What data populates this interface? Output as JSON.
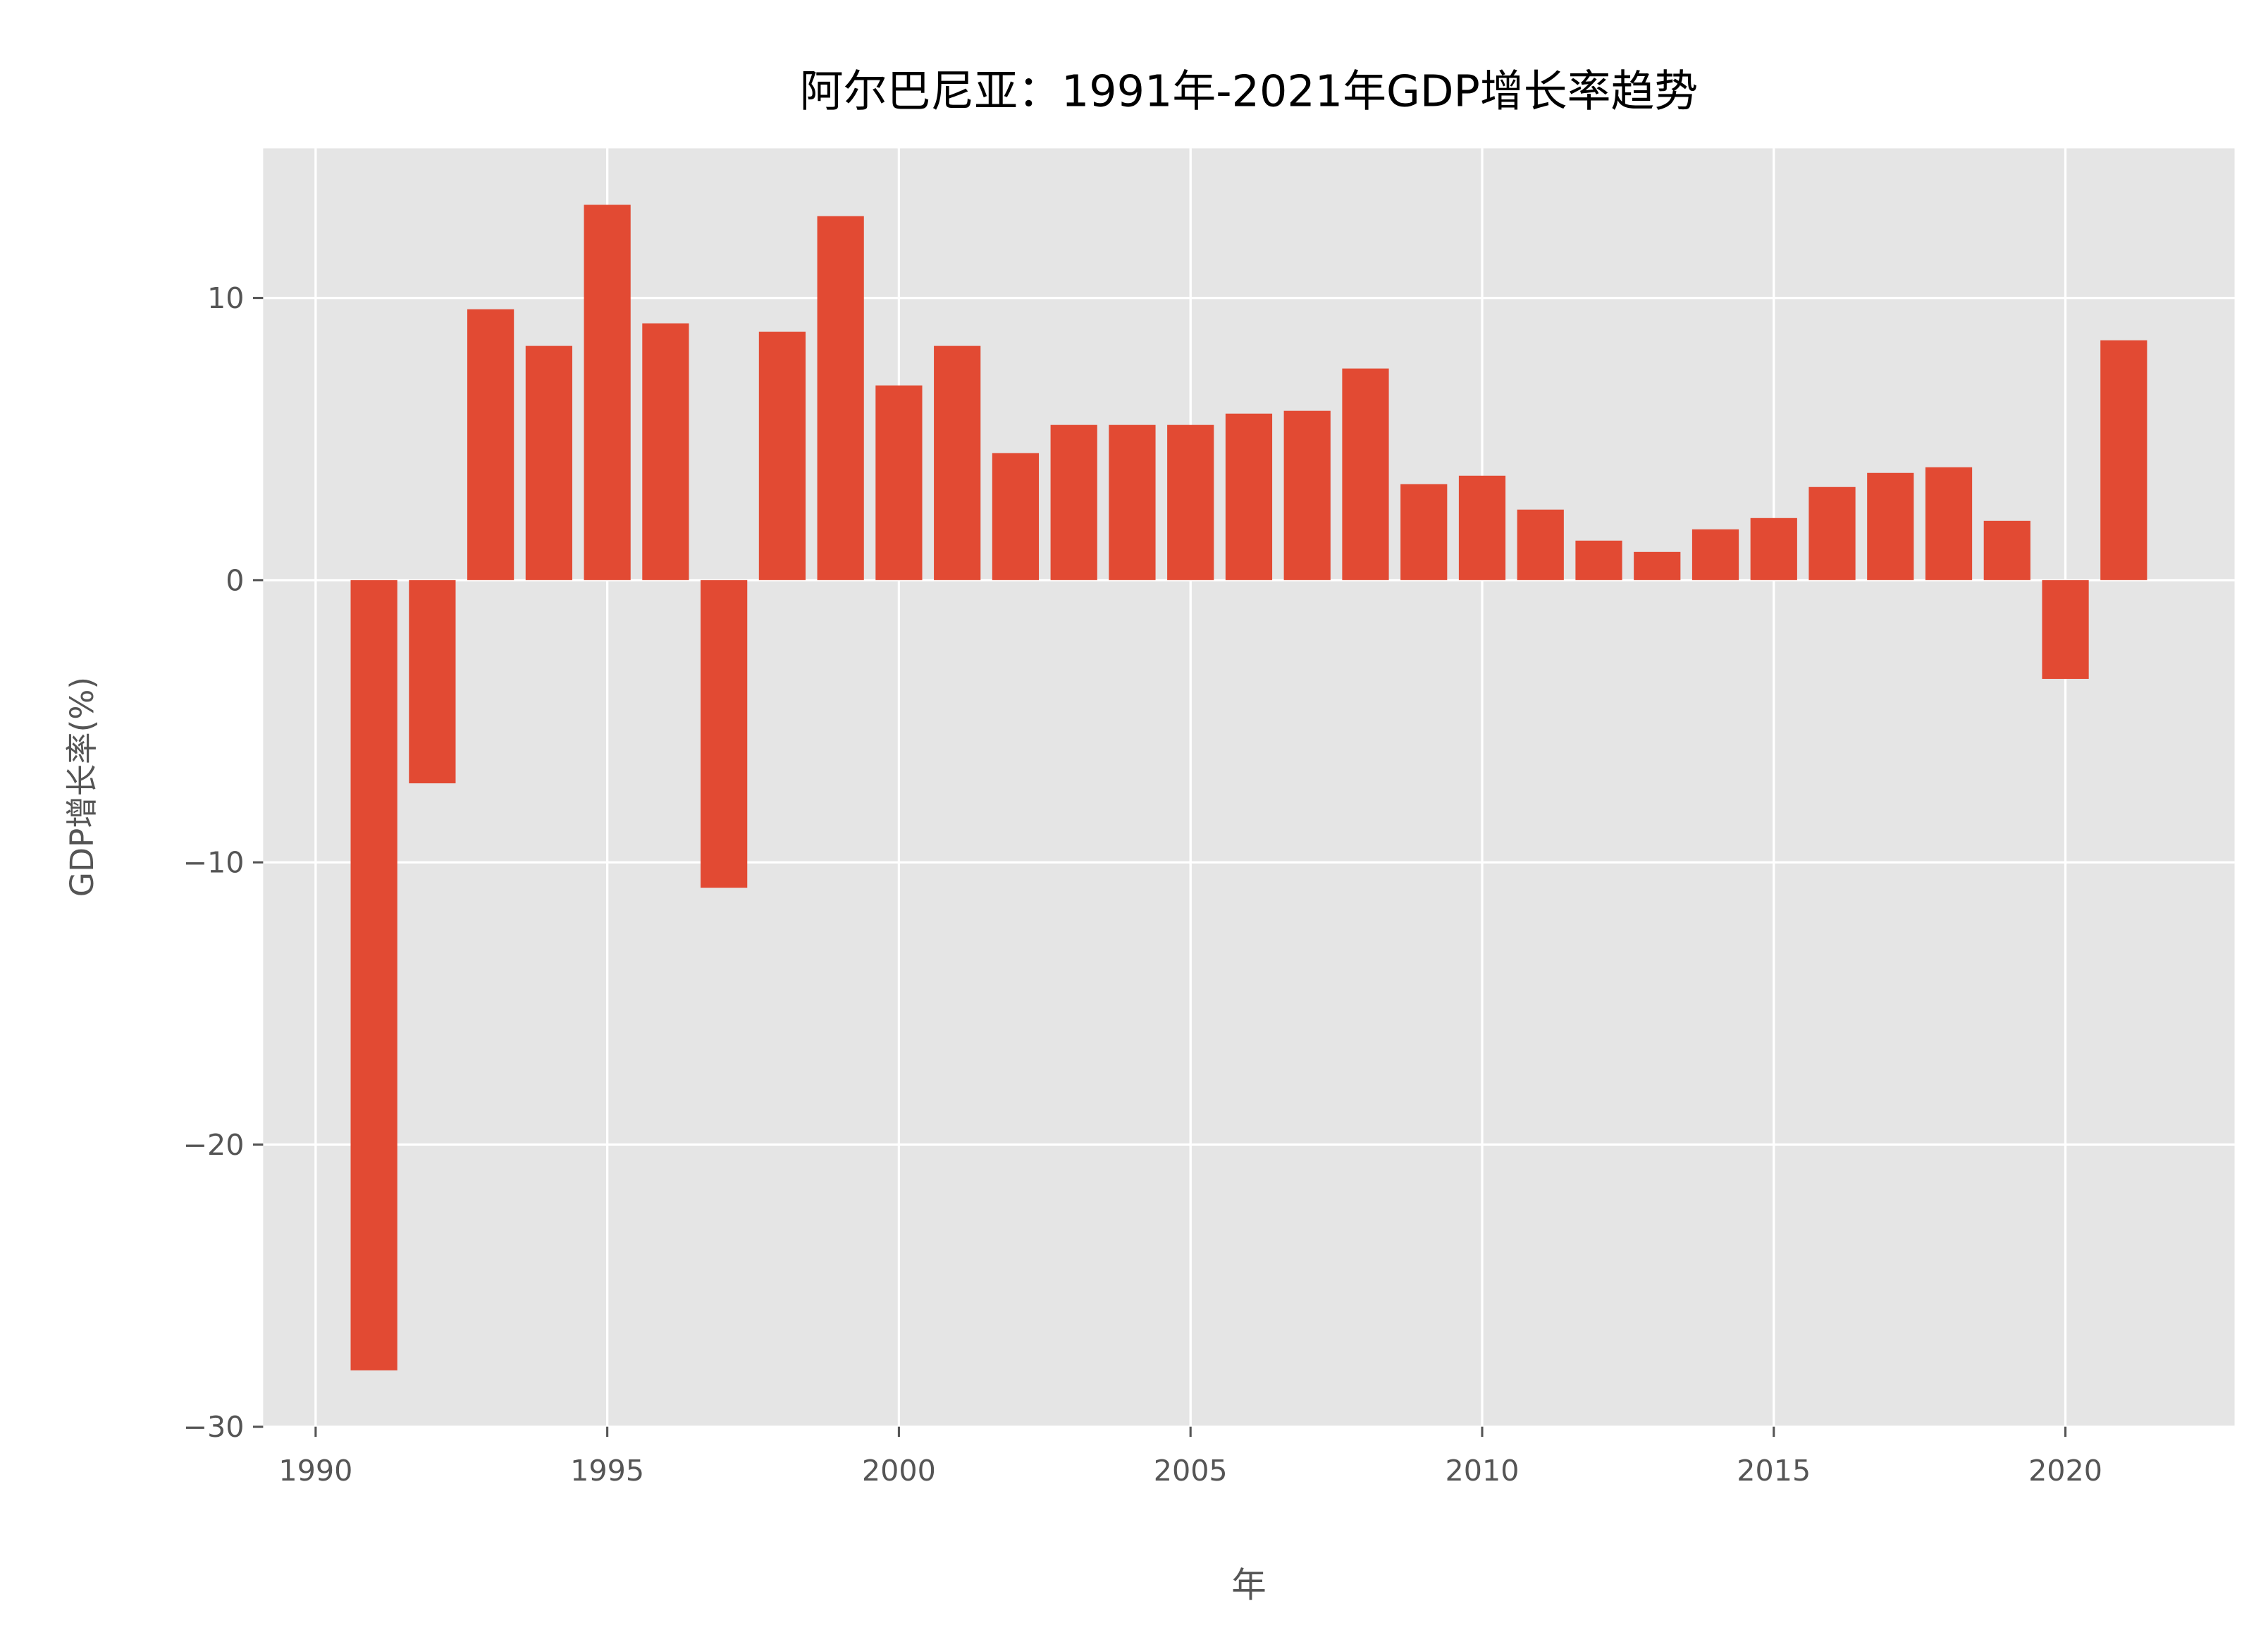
{
  "chart_data": {
    "type": "bar",
    "title": "阿尔巴尼亚：1991年-2021年GDP增长率趋势",
    "xlabel": "年",
    "ylabel": "GDP增长率(%)",
    "x": [
      1991,
      1992,
      1993,
      1994,
      1995,
      1996,
      1997,
      1998,
      1999,
      2000,
      2001,
      2002,
      2003,
      2004,
      2005,
      2006,
      2007,
      2008,
      2009,
      2010,
      2011,
      2012,
      2013,
      2014,
      2015,
      2016,
      2017,
      2018,
      2019,
      2020,
      2021
    ],
    "values": [
      -28.0,
      -7.2,
      9.6,
      8.3,
      13.3,
      9.1,
      -10.9,
      8.8,
      12.9,
      6.9,
      8.3,
      4.5,
      5.5,
      5.5,
      5.5,
      5.9,
      6.0,
      7.5,
      3.4,
      3.7,
      2.5,
      1.4,
      1.0,
      1.8,
      2.2,
      3.3,
      3.8,
      4.0,
      2.1,
      -3.5,
      8.5
    ],
    "xlim": [
      1989.1,
      2022.9
    ],
    "ylim": [
      -30,
      15.3
    ],
    "xticks": [
      "1990",
      "1995",
      "2000",
      "2005",
      "2010",
      "2015",
      "2020"
    ],
    "yticks": [
      "−30",
      "−20",
      "−10",
      "0",
      "10"
    ],
    "grid": true,
    "colors": {
      "bar": "#E24A33",
      "background": "#E5E5E5",
      "grid": "#FFFFFF",
      "text": "#555555",
      "title": "#000000"
    }
  }
}
